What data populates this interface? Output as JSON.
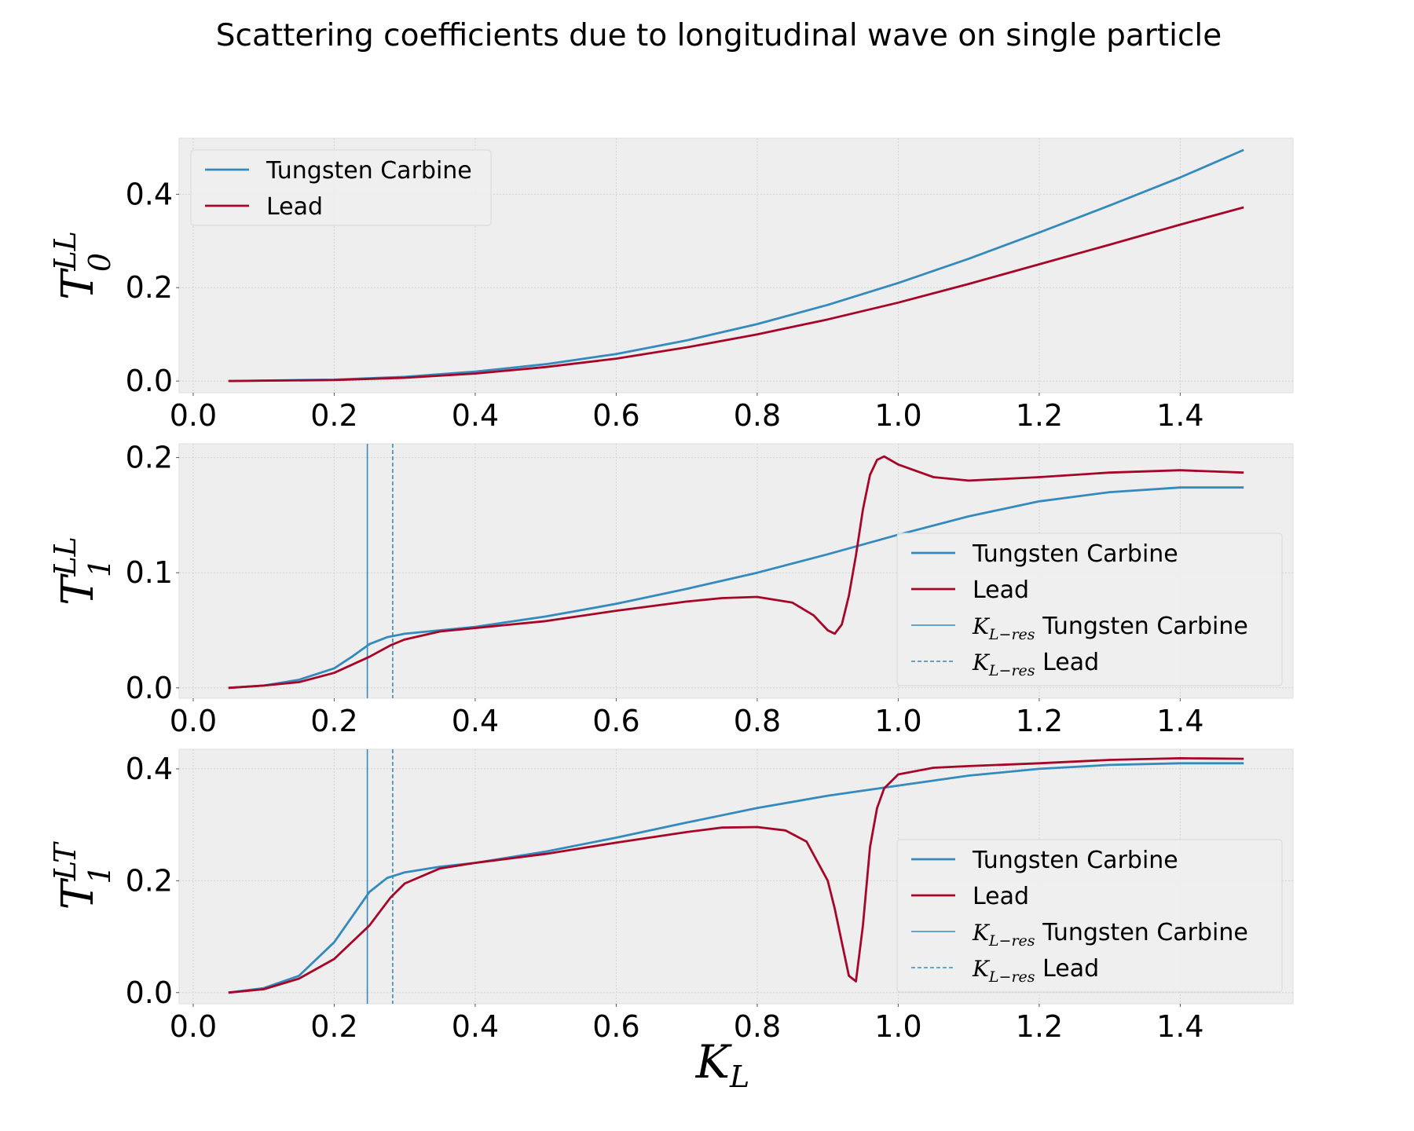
{
  "figure_title": "Scattering coefficients due to longitudinal wave on single particle",
  "colors": {
    "tungsten": "#348abd",
    "lead": "#a60628",
    "panel_bg": "#eeeeee",
    "grid": "#d2d2d2"
  },
  "chart_data": [
    {
      "type": "line",
      "ylabel": {
        "base": "T",
        "sub": "0",
        "sup": "LL"
      },
      "xlabel": "",
      "xlim": [
        -0.02,
        1.56
      ],
      "ylim": [
        -0.025,
        0.52
      ],
      "xticks": [
        "0.0",
        "0.2",
        "0.4",
        "0.6",
        "0.8",
        "1.0",
        "1.2",
        "1.4"
      ],
      "yticks": [
        "0.0",
        "0.2",
        "0.4"
      ],
      "grid": true,
      "legend_position": "upper left",
      "legend": [
        {
          "label": "Tungsten Carbine",
          "series": "tungsten",
          "style": "solid-thick"
        },
        {
          "label": "Lead",
          "series": "lead",
          "style": "solid-thick"
        }
      ],
      "series": [
        {
          "name": "Tungsten Carbine",
          "key": "tungsten",
          "x": [
            0.05,
            0.2,
            0.3,
            0.4,
            0.5,
            0.6,
            0.7,
            0.8,
            0.9,
            1.0,
            1.1,
            1.2,
            1.3,
            1.4,
            1.49
          ],
          "y": [
            0.0,
            0.003,
            0.009,
            0.02,
            0.036,
            0.058,
            0.087,
            0.122,
            0.163,
            0.21,
            0.262,
            0.318,
            0.376,
            0.436,
            0.495
          ]
        },
        {
          "name": "Lead",
          "key": "lead",
          "x": [
            0.05,
            0.2,
            0.3,
            0.4,
            0.5,
            0.6,
            0.7,
            0.8,
            0.9,
            1.0,
            1.1,
            1.2,
            1.3,
            1.4,
            1.49
          ],
          "y": [
            0.0,
            0.002,
            0.007,
            0.016,
            0.03,
            0.048,
            0.072,
            0.1,
            0.132,
            0.168,
            0.208,
            0.25,
            0.292,
            0.335,
            0.372
          ]
        }
      ],
      "vlines": []
    },
    {
      "type": "line",
      "ylabel": {
        "base": "T",
        "sub": "1",
        "sup": "LL"
      },
      "xlabel": "",
      "xlim": [
        -0.02,
        1.56
      ],
      "ylim": [
        -0.009,
        0.212
      ],
      "xticks": [
        "0.0",
        "0.2",
        "0.4",
        "0.6",
        "0.8",
        "1.0",
        "1.2",
        "1.4"
      ],
      "yticks": [
        "0.0",
        "0.1",
        "0.2"
      ],
      "grid": true,
      "legend_position": "center right",
      "legend": [
        {
          "label": "Tungsten Carbine",
          "series": "tungsten",
          "style": "solid-thick"
        },
        {
          "label": "Lead",
          "series": "lead",
          "style": "solid-thick"
        },
        {
          "label": "Tungsten Carbine",
          "math_prefix": "K",
          "math_sub": "L−res",
          "series": "tungsten",
          "style": "solid-thin"
        },
        {
          "label": "Lead",
          "math_prefix": "K",
          "math_sub": "L−res",
          "series": "tungsten",
          "style": "dashed"
        }
      ],
      "series": [
        {
          "name": "Tungsten Carbine",
          "key": "tungsten",
          "x": [
            0.05,
            0.1,
            0.15,
            0.2,
            0.225,
            0.25,
            0.275,
            0.3,
            0.35,
            0.4,
            0.5,
            0.6,
            0.7,
            0.8,
            0.9,
            1.0,
            1.1,
            1.2,
            1.3,
            1.4,
            1.49
          ],
          "y": [
            0.0,
            0.002,
            0.007,
            0.017,
            0.027,
            0.038,
            0.044,
            0.047,
            0.05,
            0.053,
            0.062,
            0.073,
            0.086,
            0.1,
            0.116,
            0.133,
            0.149,
            0.162,
            0.17,
            0.174,
            0.174
          ]
        },
        {
          "name": "Lead",
          "key": "lead",
          "x": [
            0.05,
            0.1,
            0.15,
            0.2,
            0.25,
            0.28,
            0.3,
            0.35,
            0.4,
            0.5,
            0.6,
            0.7,
            0.75,
            0.8,
            0.85,
            0.88,
            0.9,
            0.91,
            0.92,
            0.93,
            0.94,
            0.95,
            0.96,
            0.97,
            0.98,
            1.0,
            1.05,
            1.1,
            1.2,
            1.3,
            1.4,
            1.49
          ],
          "y": [
            0.0,
            0.002,
            0.005,
            0.013,
            0.027,
            0.037,
            0.042,
            0.049,
            0.052,
            0.058,
            0.067,
            0.075,
            0.078,
            0.079,
            0.074,
            0.063,
            0.05,
            0.047,
            0.055,
            0.08,
            0.115,
            0.155,
            0.185,
            0.198,
            0.201,
            0.194,
            0.183,
            0.18,
            0.183,
            0.187,
            0.189,
            0.187
          ]
        }
      ],
      "vlines": [
        {
          "x": 0.247,
          "series": "tungsten",
          "style": "solid"
        },
        {
          "x": 0.283,
          "series": "tungsten",
          "style": "dashed"
        }
      ]
    },
    {
      "type": "line",
      "ylabel": {
        "base": "T",
        "sub": "1",
        "sup": "LT"
      },
      "xlabel": "K_L",
      "xlim": [
        -0.02,
        1.56
      ],
      "ylim": [
        -0.02,
        0.435
      ],
      "xticks": [
        "0.0",
        "0.2",
        "0.4",
        "0.6",
        "0.8",
        "1.0",
        "1.2",
        "1.4"
      ],
      "yticks": [
        "0.0",
        "0.2",
        "0.4"
      ],
      "grid": true,
      "legend_position": "center right",
      "legend": [
        {
          "label": "Tungsten Carbine",
          "series": "tungsten",
          "style": "solid-thick"
        },
        {
          "label": "Lead",
          "series": "lead",
          "style": "solid-thick"
        },
        {
          "label": "Tungsten Carbine",
          "math_prefix": "K",
          "math_sub": "L−res",
          "series": "tungsten",
          "style": "solid-thin"
        },
        {
          "label": "Lead",
          "math_prefix": "K",
          "math_sub": "L−res",
          "series": "tungsten",
          "style": "dashed"
        }
      ],
      "series": [
        {
          "name": "Tungsten Carbine",
          "key": "tungsten",
          "x": [
            0.05,
            0.1,
            0.15,
            0.2,
            0.225,
            0.25,
            0.275,
            0.3,
            0.35,
            0.4,
            0.5,
            0.6,
            0.7,
            0.8,
            0.9,
            1.0,
            1.1,
            1.2,
            1.3,
            1.4,
            1.49
          ],
          "y": [
            0.0,
            0.008,
            0.03,
            0.09,
            0.135,
            0.18,
            0.205,
            0.215,
            0.225,
            0.232,
            0.252,
            0.277,
            0.304,
            0.33,
            0.352,
            0.37,
            0.388,
            0.4,
            0.407,
            0.41,
            0.41
          ]
        },
        {
          "name": "Lead",
          "key": "lead",
          "x": [
            0.05,
            0.1,
            0.15,
            0.2,
            0.25,
            0.28,
            0.3,
            0.35,
            0.4,
            0.5,
            0.6,
            0.7,
            0.75,
            0.8,
            0.84,
            0.87,
            0.9,
            0.91,
            0.92,
            0.93,
            0.94,
            0.95,
            0.96,
            0.97,
            0.98,
            1.0,
            1.05,
            1.1,
            1.2,
            1.3,
            1.4,
            1.49
          ],
          "y": [
            0.0,
            0.006,
            0.025,
            0.06,
            0.12,
            0.17,
            0.195,
            0.222,
            0.232,
            0.248,
            0.268,
            0.287,
            0.295,
            0.296,
            0.29,
            0.27,
            0.2,
            0.15,
            0.09,
            0.03,
            0.02,
            0.12,
            0.26,
            0.33,
            0.365,
            0.39,
            0.402,
            0.405,
            0.41,
            0.416,
            0.419,
            0.418
          ]
        }
      ],
      "vlines": [
        {
          "x": 0.247,
          "series": "tungsten",
          "style": "solid"
        },
        {
          "x": 0.283,
          "series": "tungsten",
          "style": "dashed"
        }
      ]
    }
  ]
}
